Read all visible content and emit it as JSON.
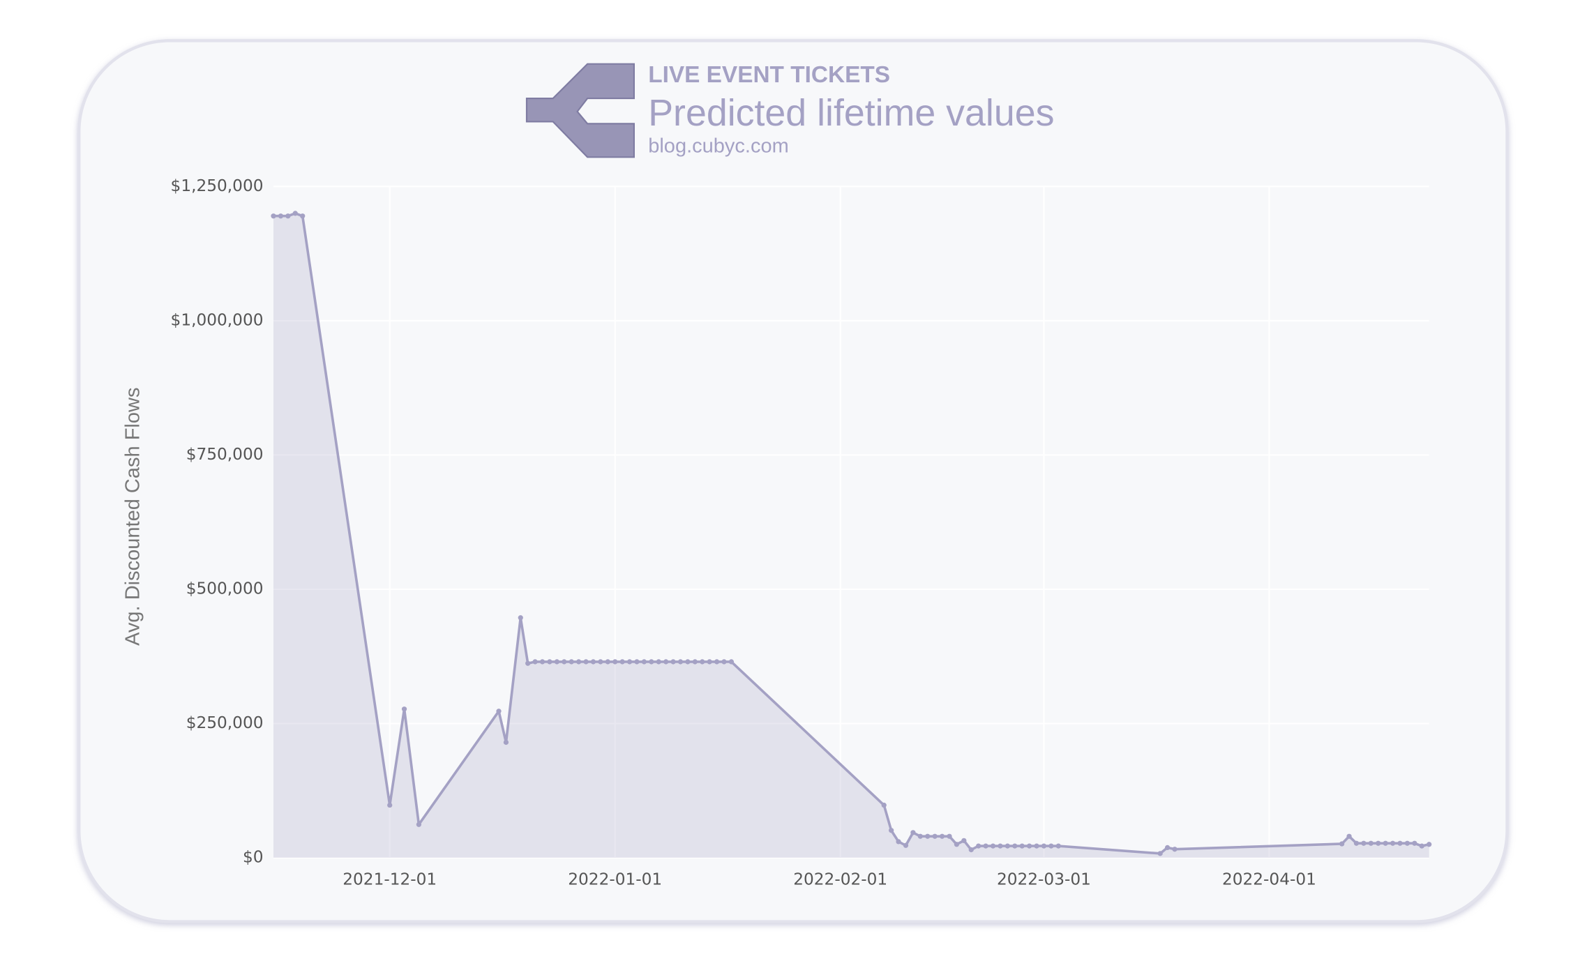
{
  "chart_data": {
    "type": "line",
    "brand": "LIVE EVENT TICKETS",
    "title": "Predicted lifetime values",
    "subtitle": "blog.cubyc.com",
    "y_label": "Avg. Discounted Cash Flows",
    "color": "#a4a1c4",
    "fill_area": true,
    "grid": true,
    "xlim": [
      "2021-11-15",
      "2022-04-23"
    ],
    "xticks": [
      "2021-12-01",
      "2022-01-01",
      "2022-02-01",
      "2022-03-01",
      "2022-04-01"
    ],
    "ylim": [
      0,
      1250000
    ],
    "yticks": [
      {
        "value": 0,
        "label": "$0"
      },
      {
        "value": 250000,
        "label": "$250,000"
      },
      {
        "value": 500000,
        "label": "$500,000"
      },
      {
        "value": 750000,
        "label": "$750,000"
      },
      {
        "value": 1000000,
        "label": "$1,000,000"
      },
      {
        "value": 1250000,
        "label": "$1,250,000"
      }
    ],
    "x": [
      "2021-11-15",
      "2021-11-16",
      "2021-11-17",
      "2021-11-18",
      "2021-11-19",
      "2021-12-01",
      "2021-12-03",
      "2021-12-05",
      "2021-12-16",
      "2021-12-17",
      "2021-12-19",
      "2021-12-20",
      "2021-12-21",
      "2021-12-22",
      "2021-12-23",
      "2021-12-24",
      "2021-12-25",
      "2021-12-26",
      "2021-12-27",
      "2021-12-28",
      "2021-12-29",
      "2021-12-30",
      "2021-12-31",
      "2022-01-01",
      "2022-01-02",
      "2022-01-03",
      "2022-01-04",
      "2022-01-05",
      "2022-01-06",
      "2022-01-07",
      "2022-01-08",
      "2022-01-09",
      "2022-01-10",
      "2022-01-11",
      "2022-01-12",
      "2022-01-13",
      "2022-01-14",
      "2022-01-15",
      "2022-01-16",
      "2022-01-17",
      "2022-02-07",
      "2022-02-08",
      "2022-02-09",
      "2022-02-10",
      "2022-02-11",
      "2022-02-12",
      "2022-02-13",
      "2022-02-14",
      "2022-02-15",
      "2022-02-16",
      "2022-02-17",
      "2022-02-18",
      "2022-02-19",
      "2022-02-20",
      "2022-02-21",
      "2022-02-22",
      "2022-02-23",
      "2022-02-24",
      "2022-02-25",
      "2022-02-26",
      "2022-02-27",
      "2022-02-28",
      "2022-03-01",
      "2022-03-02",
      "2022-03-03",
      "2022-03-17",
      "2022-03-18",
      "2022-03-19",
      "2022-04-11",
      "2022-04-12",
      "2022-04-13",
      "2022-04-14",
      "2022-04-15",
      "2022-04-16",
      "2022-04-17",
      "2022-04-18",
      "2022-04-19",
      "2022-04-20",
      "2022-04-21",
      "2022-04-22",
      "2022-04-23"
    ],
    "values": [
      1195000,
      1195000,
      1195000,
      1200000,
      1195000,
      98000,
      277000,
      62000,
      273000,
      215000,
      447000,
      362000,
      365000,
      365000,
      365000,
      365000,
      365000,
      365000,
      365000,
      365000,
      365000,
      365000,
      365000,
      365000,
      365000,
      365000,
      365000,
      365000,
      365000,
      365000,
      365000,
      365000,
      365000,
      365000,
      365000,
      365000,
      365000,
      365000,
      365000,
      365000,
      98000,
      51000,
      30000,
      23000,
      47000,
      40000,
      40000,
      40000,
      40000,
      40000,
      25000,
      32000,
      15000,
      22000,
      22000,
      22000,
      22000,
      22000,
      22000,
      22000,
      22000,
      22000,
      22000,
      22000,
      22000,
      8000,
      19000,
      16000,
      26000,
      40000,
      27000,
      27000,
      27000,
      27000,
      27000,
      27000,
      27000,
      27000,
      27000,
      22000,
      25000
    ]
  }
}
